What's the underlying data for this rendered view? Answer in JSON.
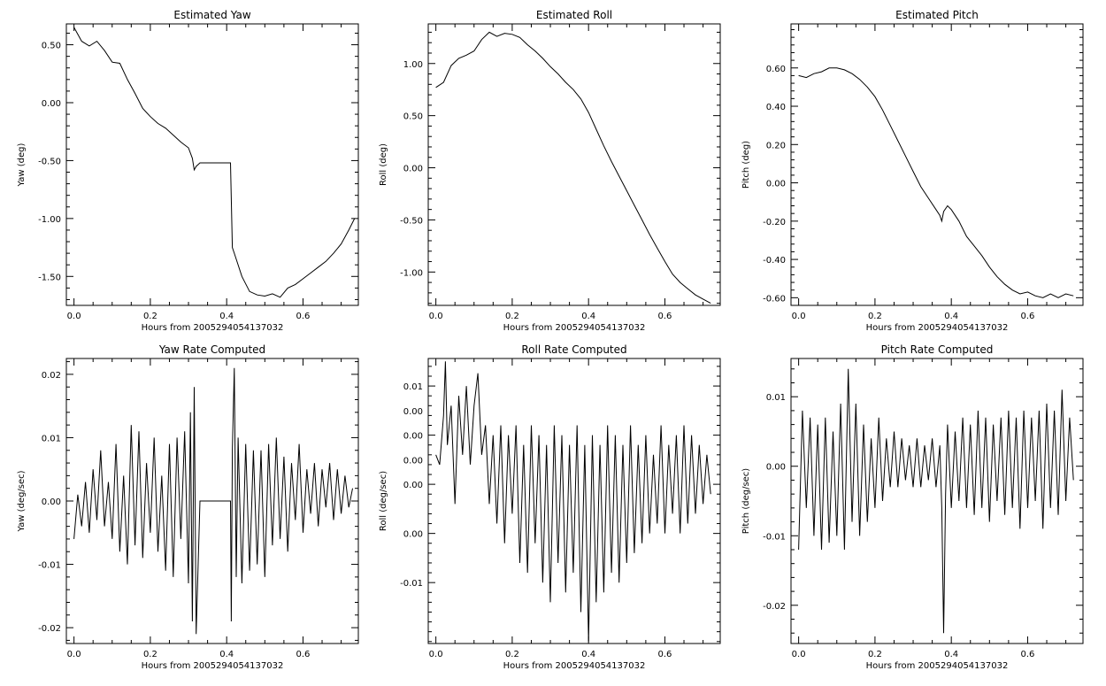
{
  "figure": {
    "background": "#ffffff",
    "ink": "#000000"
  },
  "chart_data": [
    {
      "id": "yaw",
      "type": "line",
      "title": "Estimated Yaw",
      "xlabel": "Hours from 2005294054137032",
      "ylabel": "Yaw (deg)",
      "xlim": [
        -0.02,
        0.745
      ],
      "ylim": [
        -1.75,
        0.68
      ],
      "xticks": [
        0.0,
        0.2,
        0.4,
        0.6
      ],
      "xtick_labels": [
        "0.0",
        "0.2",
        "0.4",
        "0.6"
      ],
      "yticks": [
        -1.5,
        -1.0,
        -0.5,
        0.0,
        0.5
      ],
      "ytick_labels": [
        "-1.50",
        "-1.00",
        "-0.50",
        "0.00",
        "0.50"
      ],
      "x": [
        0.0,
        0.02,
        0.04,
        0.06,
        0.08,
        0.1,
        0.12,
        0.14,
        0.16,
        0.18,
        0.2,
        0.22,
        0.24,
        0.26,
        0.28,
        0.3,
        0.31,
        0.315,
        0.32,
        0.33,
        0.4,
        0.41,
        0.415,
        0.42,
        0.44,
        0.46,
        0.48,
        0.5,
        0.52,
        0.54,
        0.56,
        0.58,
        0.6,
        0.62,
        0.64,
        0.66,
        0.68,
        0.7,
        0.72,
        0.735
      ],
      "y": [
        0.65,
        0.53,
        0.49,
        0.53,
        0.45,
        0.35,
        0.34,
        0.2,
        0.08,
        -0.05,
        -0.12,
        -0.18,
        -0.22,
        -0.28,
        -0.34,
        -0.39,
        -0.48,
        -0.58,
        -0.55,
        -0.52,
        -0.52,
        -0.52,
        -1.25,
        -1.3,
        -1.5,
        -1.63,
        -1.66,
        -1.67,
        -1.65,
        -1.68,
        -1.6,
        -1.57,
        -1.52,
        -1.47,
        -1.42,
        -1.37,
        -1.3,
        -1.22,
        -1.1,
        -1.0
      ]
    },
    {
      "id": "roll",
      "type": "line",
      "title": "Estimated Roll",
      "xlabel": "Hours from 2005294054137032",
      "ylabel": "Roll (deg)",
      "xlim": [
        -0.02,
        0.745
      ],
      "ylim": [
        -1.32,
        1.38
      ],
      "xticks": [
        0.0,
        0.2,
        0.4,
        0.6
      ],
      "xtick_labels": [
        "0.0",
        "0.2",
        "0.4",
        "0.6"
      ],
      "yticks": [
        -1.0,
        -0.5,
        0.0,
        0.5,
        1.0
      ],
      "ytick_labels": [
        "-1.00",
        "-0.50",
        "0.00",
        "0.50",
        "1.00"
      ],
      "x": [
        0.0,
        0.02,
        0.04,
        0.06,
        0.08,
        0.1,
        0.12,
        0.14,
        0.16,
        0.18,
        0.2,
        0.22,
        0.24,
        0.26,
        0.28,
        0.3,
        0.32,
        0.34,
        0.36,
        0.38,
        0.4,
        0.42,
        0.44,
        0.46,
        0.48,
        0.5,
        0.52,
        0.54,
        0.56,
        0.58,
        0.6,
        0.62,
        0.64,
        0.66,
        0.68,
        0.7,
        0.72
      ],
      "y": [
        0.77,
        0.82,
        0.98,
        1.05,
        1.08,
        1.12,
        1.23,
        1.3,
        1.26,
        1.29,
        1.28,
        1.25,
        1.18,
        1.12,
        1.05,
        0.97,
        0.9,
        0.82,
        0.75,
        0.66,
        0.53,
        0.37,
        0.21,
        0.06,
        -0.08,
        -0.22,
        -0.36,
        -0.5,
        -0.64,
        -0.77,
        -0.9,
        -1.02,
        -1.1,
        -1.16,
        -1.22,
        -1.26,
        -1.3
      ]
    },
    {
      "id": "pitch",
      "type": "line",
      "title": "Estimated Pitch",
      "xlabel": "Hours from 2005294054137032",
      "ylabel": "Pitch (deg)",
      "xlim": [
        -0.02,
        0.745
      ],
      "ylim": [
        -0.64,
        0.83
      ],
      "xticks": [
        0.0,
        0.2,
        0.4,
        0.6
      ],
      "xtick_labels": [
        "0.0",
        "0.2",
        "0.4",
        "0.6"
      ],
      "yticks": [
        -0.6,
        -0.4,
        -0.2,
        0.0,
        0.2,
        0.4,
        0.6
      ],
      "ytick_labels": [
        "-0.60",
        "-0.40",
        "-0.20",
        "0.00",
        "0.20",
        "0.40",
        "0.60"
      ],
      "x": [
        0.0,
        0.02,
        0.04,
        0.06,
        0.08,
        0.1,
        0.12,
        0.14,
        0.16,
        0.18,
        0.2,
        0.22,
        0.24,
        0.26,
        0.28,
        0.3,
        0.32,
        0.34,
        0.36,
        0.37,
        0.375,
        0.38,
        0.39,
        0.4,
        0.42,
        0.44,
        0.46,
        0.48,
        0.5,
        0.52,
        0.54,
        0.56,
        0.58,
        0.6,
        0.62,
        0.64,
        0.66,
        0.68,
        0.7,
        0.72
      ],
      "y": [
        0.56,
        0.55,
        0.57,
        0.58,
        0.6,
        0.6,
        0.59,
        0.57,
        0.54,
        0.5,
        0.45,
        0.38,
        0.3,
        0.22,
        0.14,
        0.06,
        -0.02,
        -0.08,
        -0.14,
        -0.17,
        -0.2,
        -0.15,
        -0.12,
        -0.14,
        -0.2,
        -0.28,
        -0.33,
        -0.38,
        -0.44,
        -0.49,
        -0.53,
        -0.56,
        -0.58,
        -0.57,
        -0.59,
        -0.6,
        -0.58,
        -0.6,
        -0.58,
        -0.59
      ]
    },
    {
      "id": "yaw_rate",
      "type": "line",
      "title": "Yaw Rate Computed",
      "xlabel": "Hours from 2005294054137032",
      "ylabel": "Yaw (deg/sec)",
      "xlim": [
        -0.02,
        0.745
      ],
      "ylim": [
        -0.0225,
        0.0225
      ],
      "xticks": [
        0.0,
        0.2,
        0.4,
        0.6
      ],
      "xtick_labels": [
        "0.0",
        "0.2",
        "0.4",
        "0.6"
      ],
      "yticks": [
        -0.02,
        -0.01,
        0.0,
        0.01,
        0.02
      ],
      "ytick_labels": [
        "-0.02",
        "-0.01",
        "0.00",
        "0.01",
        "0.02"
      ],
      "x": [
        0.0,
        0.01,
        0.02,
        0.03,
        0.04,
        0.05,
        0.06,
        0.07,
        0.08,
        0.09,
        0.1,
        0.11,
        0.12,
        0.13,
        0.14,
        0.15,
        0.16,
        0.17,
        0.18,
        0.19,
        0.2,
        0.21,
        0.22,
        0.23,
        0.24,
        0.25,
        0.26,
        0.27,
        0.28,
        0.29,
        0.3,
        0.305,
        0.31,
        0.315,
        0.32,
        0.33,
        0.36,
        0.39,
        0.41,
        0.412,
        0.415,
        0.42,
        0.425,
        0.43,
        0.44,
        0.45,
        0.46,
        0.47,
        0.48,
        0.49,
        0.5,
        0.51,
        0.52,
        0.53,
        0.54,
        0.55,
        0.56,
        0.57,
        0.58,
        0.59,
        0.6,
        0.61,
        0.62,
        0.63,
        0.64,
        0.65,
        0.66,
        0.67,
        0.68,
        0.69,
        0.7,
        0.71,
        0.72,
        0.73
      ],
      "y": [
        -0.006,
        0.001,
        -0.004,
        0.003,
        -0.005,
        0.005,
        -0.003,
        0.008,
        -0.004,
        0.003,
        -0.006,
        0.009,
        -0.008,
        0.004,
        -0.01,
        0.012,
        -0.007,
        0.011,
        -0.009,
        0.006,
        -0.005,
        0.01,
        -0.008,
        0.004,
        -0.011,
        0.009,
        -0.012,
        0.01,
        -0.006,
        0.011,
        -0.013,
        0.014,
        -0.019,
        0.018,
        -0.021,
        0.0,
        0.0,
        0.0,
        0.0,
        -0.019,
        0.008,
        0.021,
        -0.012,
        0.01,
        -0.013,
        0.009,
        -0.011,
        0.008,
        -0.01,
        0.008,
        -0.012,
        0.009,
        -0.007,
        0.01,
        -0.006,
        0.007,
        -0.008,
        0.006,
        -0.003,
        0.009,
        -0.005,
        0.005,
        -0.002,
        0.006,
        -0.004,
        0.005,
        -0.001,
        0.006,
        -0.003,
        0.005,
        -0.002,
        0.004,
        -0.001,
        0.002
      ]
    },
    {
      "id": "roll_rate",
      "type": "line",
      "title": "Roll Rate Computed",
      "xlabel": "Hours from 2005294054137032",
      "ylabel": "Roll (deg/sec)",
      "xlim": [
        -0.02,
        0.745
      ],
      "ylim": [
        -0.0162,
        0.0128
      ],
      "xticks": [
        0.0,
        0.2,
        0.4,
        0.6
      ],
      "xtick_labels": [
        "0.0",
        "0.2",
        "0.4",
        "0.6"
      ],
      "yticks": [
        -0.01,
        -0.005,
        0.0,
        0.005,
        0.01
      ],
      "ytick_labels": [
        "-0.01",
        "0.00",
        "0.00",
        "0.00",
        "0.01"
      ],
      "extra_ytick_labels": [
        "0.00",
        "0.00"
      ],
      "x": [
        0.0,
        0.01,
        0.02,
        0.025,
        0.03,
        0.04,
        0.05,
        0.06,
        0.07,
        0.08,
        0.09,
        0.1,
        0.11,
        0.12,
        0.13,
        0.14,
        0.15,
        0.16,
        0.17,
        0.18,
        0.19,
        0.2,
        0.21,
        0.22,
        0.23,
        0.24,
        0.25,
        0.26,
        0.27,
        0.28,
        0.29,
        0.3,
        0.31,
        0.32,
        0.33,
        0.34,
        0.35,
        0.36,
        0.37,
        0.38,
        0.39,
        0.4,
        0.41,
        0.42,
        0.43,
        0.44,
        0.45,
        0.46,
        0.47,
        0.48,
        0.49,
        0.5,
        0.51,
        0.52,
        0.53,
        0.54,
        0.55,
        0.56,
        0.57,
        0.58,
        0.59,
        0.6,
        0.61,
        0.62,
        0.63,
        0.64,
        0.65,
        0.66,
        0.67,
        0.68,
        0.69,
        0.7,
        0.71,
        0.72
      ],
      "y": [
        0.003,
        0.002,
        0.007,
        0.0125,
        0.004,
        0.008,
        -0.002,
        0.009,
        0.003,
        0.01,
        0.002,
        0.008,
        0.0113,
        0.003,
        0.006,
        -0.002,
        0.005,
        -0.004,
        0.006,
        -0.006,
        0.005,
        -0.003,
        0.006,
        -0.008,
        0.004,
        -0.009,
        0.006,
        -0.006,
        0.005,
        -0.01,
        0.004,
        -0.012,
        0.006,
        -0.008,
        0.005,
        -0.011,
        0.004,
        -0.009,
        0.006,
        -0.013,
        0.004,
        -0.016,
        0.005,
        -0.012,
        0.004,
        -0.011,
        0.006,
        -0.009,
        0.005,
        -0.01,
        0.004,
        -0.008,
        0.006,
        -0.007,
        0.004,
        -0.006,
        0.005,
        -0.005,
        0.003,
        -0.004,
        0.006,
        -0.005,
        0.004,
        -0.003,
        0.005,
        -0.005,
        0.006,
        -0.004,
        0.005,
        -0.003,
        0.004,
        -0.002,
        0.003,
        -0.001
      ]
    },
    {
      "id": "pitch_rate",
      "type": "line",
      "title": "Pitch Rate Computed",
      "xlabel": "Hours from 2005294054137032",
      "ylabel": "Pitch (deg/sec)",
      "xlim": [
        -0.02,
        0.745
      ],
      "ylim": [
        -0.0255,
        0.0155
      ],
      "xticks": [
        0.0,
        0.2,
        0.4,
        0.6
      ],
      "xtick_labels": [
        "0.0",
        "0.2",
        "0.4",
        "0.6"
      ],
      "yticks": [
        -0.02,
        -0.01,
        0.0,
        0.01
      ],
      "ytick_labels": [
        "-0.02",
        "-0.01",
        "0.00",
        "0.01"
      ],
      "x": [
        0.0,
        0.01,
        0.02,
        0.03,
        0.04,
        0.05,
        0.06,
        0.07,
        0.08,
        0.09,
        0.1,
        0.11,
        0.12,
        0.13,
        0.14,
        0.15,
        0.16,
        0.17,
        0.18,
        0.19,
        0.2,
        0.21,
        0.22,
        0.23,
        0.24,
        0.25,
        0.26,
        0.27,
        0.28,
        0.29,
        0.3,
        0.31,
        0.32,
        0.33,
        0.34,
        0.35,
        0.36,
        0.37,
        0.375,
        0.38,
        0.385,
        0.39,
        0.4,
        0.41,
        0.42,
        0.43,
        0.44,
        0.45,
        0.46,
        0.47,
        0.48,
        0.49,
        0.5,
        0.51,
        0.52,
        0.53,
        0.54,
        0.55,
        0.56,
        0.57,
        0.58,
        0.59,
        0.6,
        0.61,
        0.62,
        0.63,
        0.64,
        0.65,
        0.66,
        0.67,
        0.68,
        0.69,
        0.7,
        0.71,
        0.72
      ],
      "y": [
        -0.012,
        0.008,
        -0.006,
        0.007,
        -0.01,
        0.006,
        -0.012,
        0.007,
        -0.011,
        0.005,
        -0.01,
        0.009,
        -0.012,
        0.014,
        -0.008,
        0.009,
        -0.01,
        0.006,
        -0.008,
        0.004,
        -0.006,
        0.007,
        -0.005,
        0.004,
        -0.003,
        0.005,
        -0.003,
        0.004,
        -0.002,
        0.003,
        -0.003,
        0.004,
        -0.003,
        0.003,
        -0.002,
        0.004,
        -0.003,
        0.003,
        -0.006,
        -0.024,
        -0.004,
        0.006,
        -0.006,
        0.005,
        -0.005,
        0.007,
        -0.006,
        0.006,
        -0.007,
        0.008,
        -0.006,
        0.007,
        -0.008,
        0.006,
        -0.005,
        0.007,
        -0.007,
        0.008,
        -0.006,
        0.007,
        -0.009,
        0.008,
        -0.006,
        0.007,
        -0.005,
        0.008,
        -0.009,
        0.009,
        -0.006,
        0.008,
        -0.007,
        0.011,
        -0.005,
        0.007,
        -0.002
      ]
    }
  ]
}
